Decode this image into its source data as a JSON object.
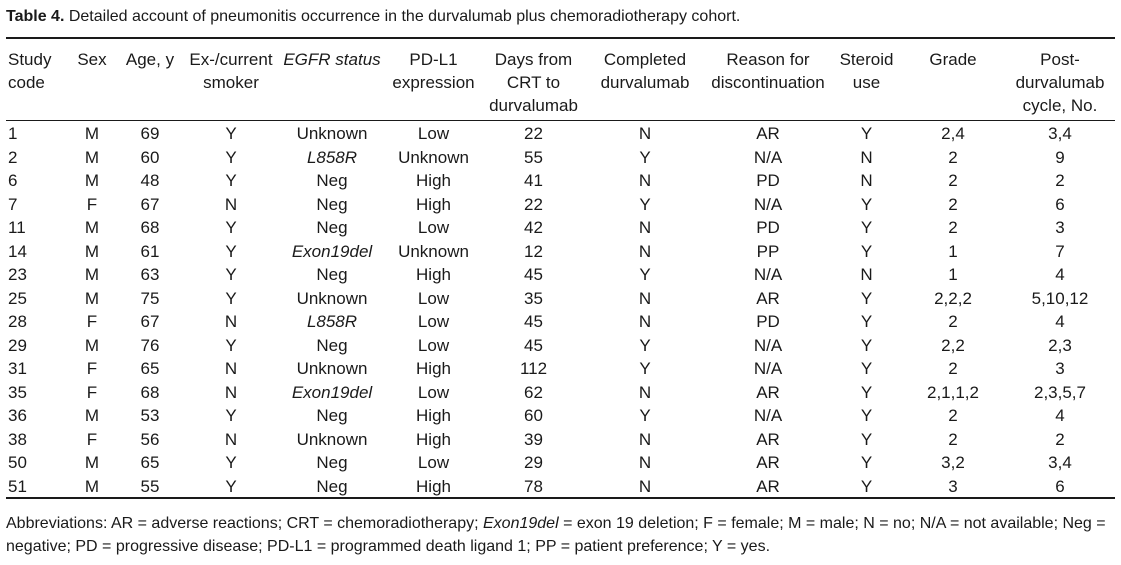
{
  "caption": {
    "label": "Table 4.",
    "text": " Detailed account of pneumonitis occurrence in the durvalumab plus chemoradiotherapy cohort."
  },
  "columns": [
    "Study code",
    "Sex",
    "Age, y",
    "Ex-/current smoker",
    "EGFR status",
    "PD-L1 expression",
    "Days from CRT to durvalumab",
    "Completed durvalumab",
    "Reason for discontinuation",
    "Steroid use",
    "Grade",
    "Post-durvalumab cycle, No."
  ],
  "rows": [
    [
      "1",
      "M",
      "69",
      "Y",
      "Unknown",
      "Low",
      "22",
      "N",
      "AR",
      "Y",
      "2,4",
      "3,4"
    ],
    [
      "2",
      "M",
      "60",
      "Y",
      "L858R",
      "Unknown",
      "55",
      "Y",
      "N/A",
      "N",
      "2",
      "9"
    ],
    [
      "6",
      "M",
      "48",
      "Y",
      "Neg",
      "High",
      "41",
      "N",
      "PD",
      "N",
      "2",
      "2"
    ],
    [
      "7",
      "F",
      "67",
      "N",
      "Neg",
      "High",
      "22",
      "Y",
      "N/A",
      "Y",
      "2",
      "6"
    ],
    [
      "11",
      "M",
      "68",
      "Y",
      "Neg",
      "Low",
      "42",
      "N",
      "PD",
      "Y",
      "2",
      "3"
    ],
    [
      "14",
      "M",
      "61",
      "Y",
      "Exon19del",
      "Unknown",
      "12",
      "N",
      "PP",
      "Y",
      "1",
      "7"
    ],
    [
      "23",
      "M",
      "63",
      "Y",
      "Neg",
      "High",
      "45",
      "Y",
      "N/A",
      "N",
      "1",
      "4"
    ],
    [
      "25",
      "M",
      "75",
      "Y",
      "Unknown",
      "Low",
      "35",
      "N",
      "AR",
      "Y",
      "2,2,2",
      "5,10,12"
    ],
    [
      "28",
      "F",
      "67",
      "N",
      "L858R",
      "Low",
      "45",
      "N",
      "PD",
      "Y",
      "2",
      "4"
    ],
    [
      "29",
      "M",
      "76",
      "Y",
      "Neg",
      "Low",
      "45",
      "Y",
      "N/A",
      "Y",
      "2,2",
      "2,3"
    ],
    [
      "31",
      "F",
      "65",
      "N",
      "Unknown",
      "High",
      "112",
      "Y",
      "N/A",
      "Y",
      "2",
      "3"
    ],
    [
      "35",
      "F",
      "68",
      "N",
      "Exon19del",
      "Low",
      "62",
      "N",
      "AR",
      "Y",
      "2,1,1,2",
      "2,3,5,7"
    ],
    [
      "36",
      "M",
      "53",
      "Y",
      "Neg",
      "High",
      "60",
      "Y",
      "N/A",
      "Y",
      "2",
      "4"
    ],
    [
      "38",
      "F",
      "56",
      "N",
      "Unknown",
      "High",
      "39",
      "N",
      "AR",
      "Y",
      "2",
      "2"
    ],
    [
      "50",
      "M",
      "65",
      "Y",
      "Neg",
      "Low",
      "29",
      "N",
      "AR",
      "Y",
      "3,2",
      "3,4"
    ],
    [
      "51",
      "M",
      "55",
      "Y",
      "Neg",
      "High",
      "78",
      "N",
      "AR",
      "Y",
      "3",
      "6"
    ]
  ],
  "footnote": {
    "part1": "Abbreviations: AR = adverse reactions; CRT = chemoradiotherapy; ",
    "term_italic": "Exon19del",
    "part2": " = exon 19 deletion; F = female; M = male; N = no; N/A = not available; Neg = negative; PD = progressive disease; PD-L1 = programmed death ligand 1; PP = patient preference; Y = yes."
  }
}
